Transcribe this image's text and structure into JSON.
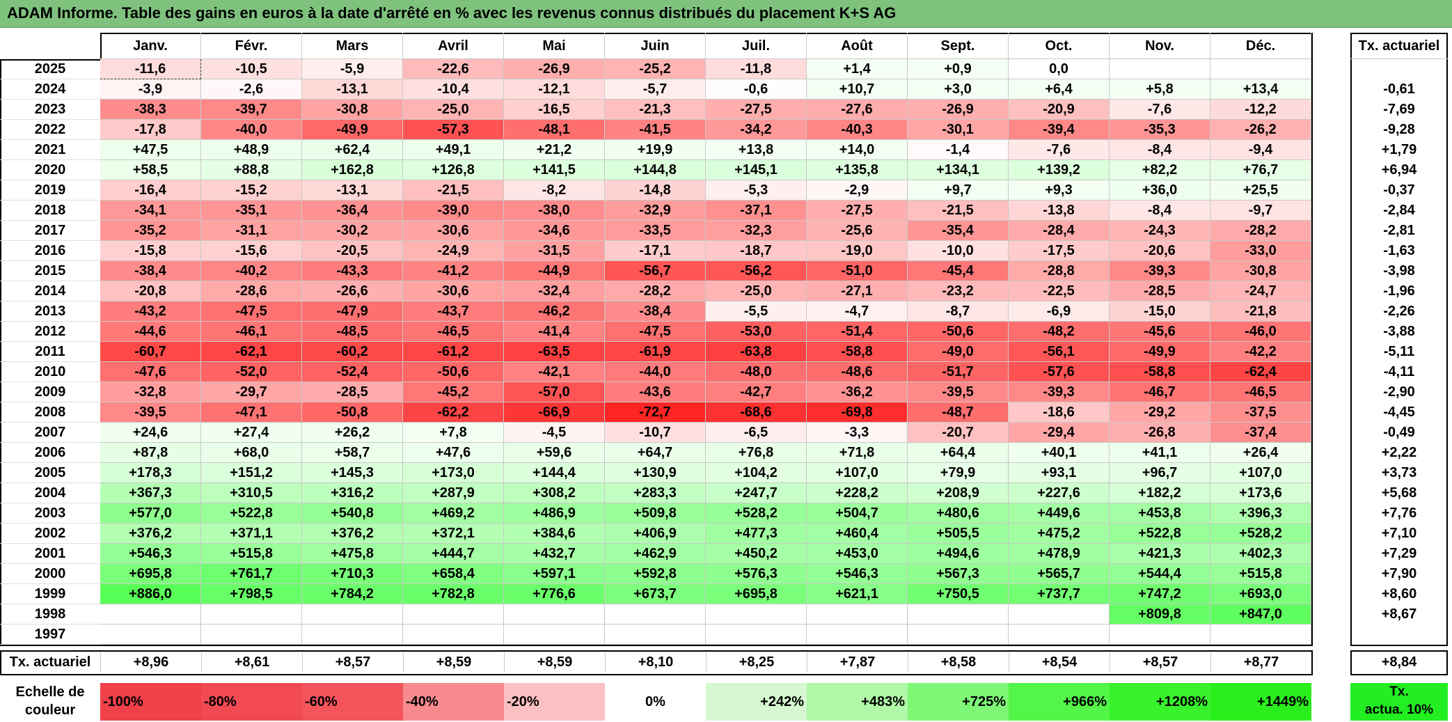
{
  "title": "ADAM Informe. Table des gains en euros à la date d'arrêté en % avec les revenus connus distribués du placement K+S AG",
  "months": [
    "Janv.",
    "Févr.",
    "Mars",
    "Avril",
    "Mai",
    "Juin",
    "Juil.",
    "Août",
    "Sept.",
    "Oct.",
    "Nov.",
    "Déc."
  ],
  "rate_header": "Tx. actuariel",
  "rows": [
    {
      "year": "2025",
      "values": [
        "-11,6",
        "-10,5",
        "-5,9",
        "-22,6",
        "-26,9",
        "-25,2",
        "-11,8",
        "+1,4",
        "+0,9",
        "0,0",
        "",
        ""
      ],
      "rate": ""
    },
    {
      "year": "2024",
      "values": [
        "-3,9",
        "-2,6",
        "-13,1",
        "-10,4",
        "-12,1",
        "-5,7",
        "-0,6",
        "+10,7",
        "+3,0",
        "+6,4",
        "+5,8",
        "+13,4"
      ],
      "rate": "-0,61"
    },
    {
      "year": "2023",
      "values": [
        "-38,3",
        "-39,7",
        "-30,8",
        "-25,0",
        "-16,5",
        "-21,3",
        "-27,5",
        "-27,6",
        "-26,9",
        "-20,9",
        "-7,6",
        "-12,2"
      ],
      "rate": "-7,69"
    },
    {
      "year": "2022",
      "values": [
        "-17,8",
        "-40,0",
        "-49,9",
        "-57,3",
        "-48,1",
        "-41,5",
        "-34,2",
        "-40,3",
        "-30,1",
        "-39,4",
        "-35,3",
        "-26,2"
      ],
      "rate": "-9,28"
    },
    {
      "year": "2021",
      "values": [
        "+47,5",
        "+48,9",
        "+62,4",
        "+49,1",
        "+21,2",
        "+19,9",
        "+13,8",
        "+14,0",
        "-1,4",
        "-7,6",
        "-8,4",
        "-9,4"
      ],
      "rate": "+1,79"
    },
    {
      "year": "2020",
      "values": [
        "+58,5",
        "+88,8",
        "+162,8",
        "+126,8",
        "+141,5",
        "+144,8",
        "+145,1",
        "+135,8",
        "+134,1",
        "+139,2",
        "+82,2",
        "+76,7"
      ],
      "rate": "+6,94"
    },
    {
      "year": "2019",
      "values": [
        "-16,4",
        "-15,2",
        "-13,1",
        "-21,5",
        "-8,2",
        "-14,8",
        "-5,3",
        "-2,9",
        "+9,7",
        "+9,3",
        "+36,0",
        "+25,5"
      ],
      "rate": "-0,37"
    },
    {
      "year": "2018",
      "values": [
        "-34,1",
        "-35,1",
        "-36,4",
        "-39,0",
        "-38,0",
        "-32,9",
        "-37,1",
        "-27,5",
        "-21,5",
        "-13,8",
        "-8,4",
        "-9,7"
      ],
      "rate": "-2,84"
    },
    {
      "year": "2017",
      "values": [
        "-35,2",
        "-31,1",
        "-30,2",
        "-30,6",
        "-34,6",
        "-33,5",
        "-32,3",
        "-25,6",
        "-35,4",
        "-28,4",
        "-24,3",
        "-28,2"
      ],
      "rate": "-2,81"
    },
    {
      "year": "2016",
      "values": [
        "-15,8",
        "-15,6",
        "-20,5",
        "-24,9",
        "-31,5",
        "-17,1",
        "-18,7",
        "-19,0",
        "-10,0",
        "-17,5",
        "-20,6",
        "-33,0"
      ],
      "rate": "-1,63"
    },
    {
      "year": "2015",
      "values": [
        "-38,4",
        "-40,2",
        "-43,3",
        "-41,2",
        "-44,9",
        "-56,7",
        "-56,2",
        "-51,0",
        "-45,4",
        "-28,8",
        "-39,3",
        "-30,8"
      ],
      "rate": "-3,98"
    },
    {
      "year": "2014",
      "values": [
        "-20,8",
        "-28,6",
        "-26,6",
        "-30,6",
        "-32,4",
        "-28,2",
        "-25,0",
        "-27,1",
        "-23,2",
        "-22,5",
        "-28,5",
        "-24,7"
      ],
      "rate": "-1,96"
    },
    {
      "year": "2013",
      "values": [
        "-43,2",
        "-47,5",
        "-47,9",
        "-43,7",
        "-46,2",
        "-38,4",
        "-5,5",
        "-4,7",
        "-8,7",
        "-6,9",
        "-15,0",
        "-21,8"
      ],
      "rate": "-2,26"
    },
    {
      "year": "2012",
      "values": [
        "-44,6",
        "-46,1",
        "-48,5",
        "-46,5",
        "-41,4",
        "-47,5",
        "-53,0",
        "-51,4",
        "-50,6",
        "-48,2",
        "-45,6",
        "-46,0"
      ],
      "rate": "-3,88"
    },
    {
      "year": "2011",
      "values": [
        "-60,7",
        "-62,1",
        "-60,2",
        "-61,2",
        "-63,5",
        "-61,9",
        "-63,8",
        "-58,8",
        "-49,0",
        "-56,1",
        "-49,9",
        "-42,2"
      ],
      "rate": "-5,11"
    },
    {
      "year": "2010",
      "values": [
        "-47,6",
        "-52,0",
        "-52,4",
        "-50,6",
        "-42,1",
        "-44,0",
        "-48,0",
        "-48,6",
        "-51,7",
        "-57,6",
        "-58,8",
        "-62,4"
      ],
      "rate": "-4,11"
    },
    {
      "year": "2009",
      "values": [
        "-32,8",
        "-29,7",
        "-28,5",
        "-45,2",
        "-57,0",
        "-43,6",
        "-42,7",
        "-36,2",
        "-39,5",
        "-39,3",
        "-46,7",
        "-46,5"
      ],
      "rate": "-2,90"
    },
    {
      "year": "2008",
      "values": [
        "-39,5",
        "-47,1",
        "-50,8",
        "-62,2",
        "-66,9",
        "-72,7",
        "-68,6",
        "-69,8",
        "-48,7",
        "-18,6",
        "-29,2",
        "-37,5"
      ],
      "rate": "-4,45"
    },
    {
      "year": "2007",
      "values": [
        "+24,6",
        "+27,4",
        "+26,2",
        "+7,8",
        "-4,5",
        "-10,7",
        "-6,5",
        "-3,3",
        "-20,7",
        "-29,4",
        "-26,8",
        "-37,4"
      ],
      "rate": "-0,49"
    },
    {
      "year": "2006",
      "values": [
        "+87,8",
        "+68,0",
        "+58,7",
        "+47,6",
        "+59,6",
        "+64,7",
        "+76,8",
        "+71,8",
        "+64,4",
        "+40,1",
        "+41,1",
        "+26,4"
      ],
      "rate": "+2,22"
    },
    {
      "year": "2005",
      "values": [
        "+178,3",
        "+151,2",
        "+145,3",
        "+173,0",
        "+144,4",
        "+130,9",
        "+104,2",
        "+107,0",
        "+79,9",
        "+93,1",
        "+96,7",
        "+107,0"
      ],
      "rate": "+3,73"
    },
    {
      "year": "2004",
      "values": [
        "+367,3",
        "+310,5",
        "+316,2",
        "+287,9",
        "+308,2",
        "+283,3",
        "+247,7",
        "+228,2",
        "+208,9",
        "+227,6",
        "+182,2",
        "+173,6"
      ],
      "rate": "+5,68"
    },
    {
      "year": "2003",
      "values": [
        "+577,0",
        "+522,8",
        "+540,8",
        "+469,2",
        "+486,9",
        "+509,8",
        "+528,2",
        "+504,7",
        "+480,6",
        "+449,6",
        "+453,8",
        "+396,3"
      ],
      "rate": "+7,76"
    },
    {
      "year": "2002",
      "values": [
        "+376,2",
        "+371,1",
        "+376,2",
        "+372,1",
        "+384,6",
        "+406,9",
        "+477,3",
        "+460,4",
        "+505,5",
        "+475,2",
        "+522,8",
        "+528,2"
      ],
      "rate": "+7,10"
    },
    {
      "year": "2001",
      "values": [
        "+546,3",
        "+515,8",
        "+475,8",
        "+444,7",
        "+432,7",
        "+462,9",
        "+450,2",
        "+453,0",
        "+494,6",
        "+478,9",
        "+421,3",
        "+402,3"
      ],
      "rate": "+7,29"
    },
    {
      "year": "2000",
      "values": [
        "+695,8",
        "+761,7",
        "+710,3",
        "+658,4",
        "+597,1",
        "+592,8",
        "+576,3",
        "+546,3",
        "+567,3",
        "+565,7",
        "+544,4",
        "+515,8"
      ],
      "rate": "+7,90"
    },
    {
      "year": "1999",
      "values": [
        "+886,0",
        "+798,5",
        "+784,2",
        "+782,8",
        "+776,6",
        "+673,7",
        "+695,8",
        "+621,1",
        "+750,5",
        "+737,7",
        "+747,2",
        "+693,0"
      ],
      "rate": "+8,60"
    },
    {
      "year": "1998",
      "values": [
        "",
        "",
        "",
        "",
        "",
        "",
        "",
        "",
        "",
        "",
        "+809,8",
        "+847,0"
      ],
      "rate": "+8,67"
    },
    {
      "year": "1997",
      "values": [
        "",
        "",
        "",
        "",
        "",
        "",
        "",
        "",
        "",
        "",
        "",
        ""
      ],
      "rate": ""
    }
  ],
  "footer": {
    "label": "Tx. actuariel",
    "values": [
      "+8,96",
      "+8,61",
      "+8,57",
      "+8,59",
      "+8,59",
      "+8,10",
      "+8,25",
      "+7,87",
      "+8,58",
      "+8,54",
      "+8,57",
      "+8,77"
    ],
    "total": "+8,84"
  },
  "scale": {
    "label_line1": "Echelle de",
    "label_line2": "couleur",
    "steps": [
      "-100%",
      "-80%",
      "-60%",
      "-40%",
      "-20%",
      "0%",
      "+242%",
      "+483%",
      "+725%",
      "+966%",
      "+1208%",
      "+1449%"
    ],
    "step_colors": [
      "#f0404a",
      "#f24a52",
      "#f4545c",
      "#f88a8e",
      "#fbc0c2",
      "#ffffff",
      "#d6f8d0",
      "#b0f7a8",
      "#7ef777",
      "#52f548",
      "#38f22c",
      "#2aef1c"
    ],
    "rate_line1": "Tx.",
    "rate_line2": "actua. 10%",
    "rate_color": "#22ee22"
  },
  "colors": {
    "title_bg": "#7ec27e",
    "neg_max": "#ff1f1f",
    "pos_max": "#55ee55"
  }
}
